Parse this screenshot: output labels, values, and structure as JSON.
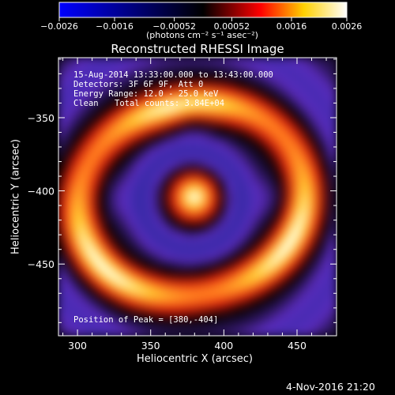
{
  "colorbar": {
    "ticks": [
      "-0.0026",
      "-0.0016",
      "-0.00052",
      "0.00052",
      "0.0016",
      "0.0026"
    ],
    "units": "(photons cm⁻² s⁻¹ asec⁻²)",
    "colors": [
      "#0000ff",
      "#000000",
      "#ff0000",
      "#ffff00",
      "#ffffff"
    ]
  },
  "chart_data": {
    "type": "heatmap",
    "title": "Reconstructed RHESSI Image",
    "xlabel": "Heliocentric X (arcsec)",
    "ylabel": "Heliocentric Y (arcsec)",
    "xlim": [
      287,
      477
    ],
    "ylim": [
      -499,
      -309
    ],
    "xticks": [
      "300",
      "350",
      "400",
      "450"
    ],
    "yticks": [
      "-350",
      "-400",
      "-450"
    ],
    "xtick_values": [
      300,
      350,
      400,
      450
    ],
    "ytick_values": [
      -350,
      -400,
      -450
    ],
    "zlim": [
      -0.0026,
      0.0026
    ],
    "colormap": [
      "#3a2aa8",
      "#5d2cc0",
      "#000000",
      "#c8140a",
      "#ff6a1a",
      "#ffcc33",
      "#ffffe8"
    ],
    "annotations": [
      "15-Aug-2014 13:33:00.000 to 13:43:00.000",
      "Detectors: 3F 6F 9F, Att 0",
      "Energy Range: 12.0 - 25.0 keV",
      "Clean",
      "Total counts: 3.84E+04"
    ],
    "peak_label": "Position of Peak = [380,-404]",
    "peak": [
      380,
      -404
    ]
  },
  "footer": {
    "timestamp": "4-Nov-2016 21:20"
  }
}
